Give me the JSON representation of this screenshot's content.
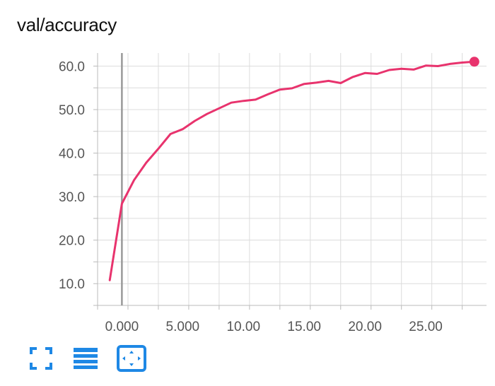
{
  "header": {
    "title": "val/accuracy"
  },
  "toolbar": {
    "icons": [
      "expand-icon",
      "data-table-icon",
      "fit-domain-icon"
    ],
    "color": "#1e88e5"
  },
  "chart_data": {
    "type": "line",
    "title": "val/accuracy",
    "xlabel": "",
    "ylabel": "",
    "xlim": [
      -2,
      30
    ],
    "ylim": [
      5,
      63
    ],
    "x_ticks": [
      "0.000",
      "5.000",
      "10.00",
      "15.00",
      "20.00",
      "25.00"
    ],
    "y_ticks": [
      "10.0",
      "20.0",
      "30.0",
      "40.0",
      "50.0",
      "60.0"
    ],
    "grid": true,
    "line_color": "#e8336d",
    "series": [
      {
        "x": [
          -1,
          0,
          1,
          2,
          3,
          4,
          5,
          6,
          7,
          8,
          9,
          10,
          11,
          12,
          13,
          14,
          15,
          16,
          17,
          18,
          19,
          20,
          21,
          22,
          23,
          24,
          25,
          26,
          27,
          28,
          29
        ],
        "values": [
          10.8,
          28.4,
          33.8,
          37.8,
          41.0,
          44.4,
          45.5,
          47.4,
          49.0,
          50.3,
          51.6,
          52.0,
          52.3,
          53.5,
          54.6,
          54.9,
          55.9,
          56.2,
          56.6,
          56.1,
          57.5,
          58.4,
          58.2,
          59.1,
          59.4,
          59.2,
          60.1,
          60.0,
          60.5,
          60.8,
          61.0
        ]
      }
    ]
  }
}
